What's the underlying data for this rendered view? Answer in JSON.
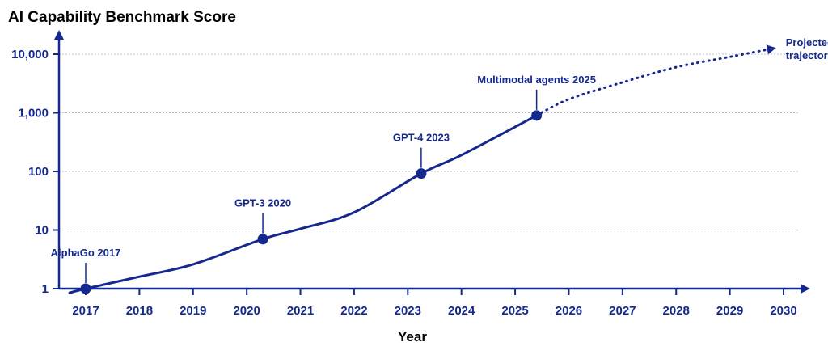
{
  "colors": {
    "primary": "#14288f",
    "grid": "#b8bfd6",
    "background": "#ffffff"
  },
  "chart_data": {
    "type": "line",
    "title": "AI Capability Benchmark Score",
    "xlabel": "Year",
    "ylabel": "",
    "yscale": "log",
    "grid": "horizontal dotted",
    "ylim": [
      1,
      10000
    ],
    "xlim": [
      2016.5,
      2030.3
    ],
    "x_ticks": [
      2017,
      2018,
      2019,
      2020,
      2021,
      2022,
      2023,
      2024,
      2025,
      2026,
      2027,
      2028,
      2029,
      2030
    ],
    "y_ticks": [
      {
        "value": 1,
        "label": "1"
      },
      {
        "value": 10,
        "label": "10"
      },
      {
        "value": 100,
        "label": "100"
      },
      {
        "value": 1000,
        "label": "1,000"
      },
      {
        "value": 10000,
        "label": "10,000"
      }
    ],
    "series": [
      {
        "style": "solid",
        "points": [
          {
            "x": 2016.7,
            "y": 0.85
          },
          {
            "x": 2017.0,
            "y": 1.0
          },
          {
            "x": 2018.0,
            "y": 1.6
          },
          {
            "x": 2019.0,
            "y": 2.6
          },
          {
            "x": 2020.3,
            "y": 7.0
          },
          {
            "x": 2021.0,
            "y": 10.5
          },
          {
            "x": 2022.0,
            "y": 20
          },
          {
            "x": 2023.25,
            "y": 92
          },
          {
            "x": 2024.0,
            "y": 190
          },
          {
            "x": 2025.4,
            "y": 900
          }
        ]
      },
      {
        "style": "dotted",
        "label": "Projected trajectory",
        "points": [
          {
            "x": 2025.4,
            "y": 900
          },
          {
            "x": 2026.0,
            "y": 1700
          },
          {
            "x": 2027.0,
            "y": 3300
          },
          {
            "x": 2028.0,
            "y": 6000
          },
          {
            "x": 2029.0,
            "y": 9000
          },
          {
            "x": 2029.8,
            "y": 12500
          }
        ]
      }
    ],
    "annotations": [
      {
        "label": "AlphaGo 2017",
        "x": 2017.0,
        "y": 1.0,
        "text_lines": [
          "AlphaGo 2017"
        ],
        "text_align": "middle"
      },
      {
        "label": "GPT-3 2020",
        "x": 2020.3,
        "y": 7.0,
        "text_lines": [
          "GPT-3 2020"
        ],
        "text_align": "middle"
      },
      {
        "label": "GPT-4 2023",
        "x": 2023.25,
        "y": 92,
        "text_lines": [
          "GPT-4 2023"
        ],
        "text_align": "middle"
      },
      {
        "label": "Multimodal agents 2025",
        "x": 2025.4,
        "y": 900,
        "text_lines": [
          "Multimodal agents 2025"
        ],
        "text_align": "middle"
      }
    ],
    "trajectory_label_lines": [
      "Projected",
      "trajectory"
    ]
  }
}
